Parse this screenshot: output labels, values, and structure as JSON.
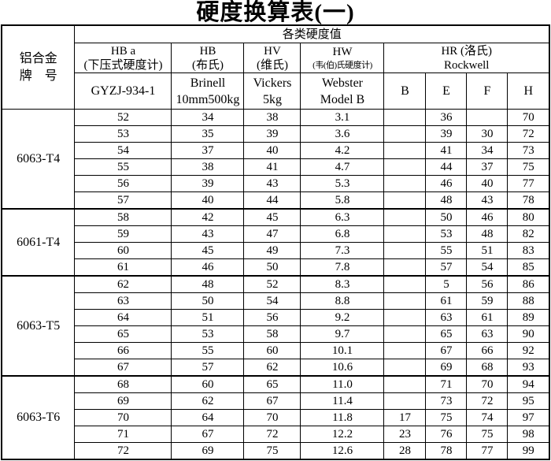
{
  "title": "硬度换算表(一)",
  "header": {
    "alloy_col": {
      "line1": "铝合金",
      "line2": "牌　号"
    },
    "span": "各类硬度值",
    "cols": [
      {
        "name": "HB a",
        "sub": "(下压式硬度计)",
        "spec": [
          "GYZJ-934-1"
        ]
      },
      {
        "name": "HB",
        "sub": "(布氏)",
        "spec": [
          "Brinell",
          "10mm500kg"
        ]
      },
      {
        "name": "HV",
        "sub": "(维氏)",
        "spec": [
          "Vickers",
          "5kg"
        ]
      },
      {
        "name": "HW",
        "sub": "(韦(伯)氏硬度计)",
        "spec": [
          "Webster",
          "Model B"
        ]
      },
      {
        "name": "HR (洛氏)",
        "sub": "Rockwell",
        "spec": [
          "B",
          "E",
          "F",
          "H"
        ]
      }
    ]
  },
  "groups": [
    {
      "alloy": "6063-T4",
      "rows": [
        [
          "52",
          "34",
          "38",
          "3.1",
          "",
          "36",
          "",
          "70"
        ],
        [
          "53",
          "35",
          "39",
          "3.6",
          "",
          "39",
          "30",
          "72"
        ],
        [
          "54",
          "37",
          "40",
          "4.2",
          "",
          "41",
          "34",
          "73"
        ],
        [
          "55",
          "38",
          "41",
          "4.7",
          "",
          "44",
          "37",
          "75"
        ],
        [
          "56",
          "39",
          "43",
          "5.3",
          "",
          "46",
          "40",
          "77"
        ],
        [
          "57",
          "40",
          "44",
          "5.8",
          "",
          "48",
          "43",
          "78"
        ]
      ]
    },
    {
      "alloy": "6061-T4",
      "rows": [
        [
          "58",
          "42",
          "45",
          "6.3",
          "",
          "50",
          "46",
          "80"
        ],
        [
          "59",
          "43",
          "47",
          "6.8",
          "",
          "53",
          "48",
          "82"
        ],
        [
          "60",
          "45",
          "49",
          "7.3",
          "",
          "55",
          "51",
          "83"
        ],
        [
          "61",
          "46",
          "50",
          "7.8",
          "",
          "57",
          "54",
          "85"
        ]
      ]
    },
    {
      "alloy": "6063-T5",
      "rows": [
        [
          "62",
          "48",
          "52",
          "8.3",
          "",
          "5",
          "56",
          "86"
        ],
        [
          "63",
          "50",
          "54",
          "8.8",
          "",
          "61",
          "59",
          "88"
        ],
        [
          "64",
          "51",
          "56",
          "9.2",
          "",
          "63",
          "61",
          "89"
        ],
        [
          "65",
          "53",
          "58",
          "9.7",
          "",
          "65",
          "63",
          "90"
        ],
        [
          "66",
          "55",
          "60",
          "10.1",
          "",
          "67",
          "66",
          "92"
        ],
        [
          "67",
          "57",
          "62",
          "10.6",
          "",
          "69",
          "68",
          "93"
        ]
      ]
    },
    {
      "alloy": "6063-T6",
      "rows": [
        [
          "68",
          "60",
          "65",
          "11.0",
          "",
          "71",
          "70",
          "94"
        ],
        [
          "69",
          "62",
          "67",
          "11.4",
          "",
          "73",
          "72",
          "95"
        ],
        [
          "70",
          "64",
          "70",
          "11.8",
          "17",
          "75",
          "74",
          "97"
        ],
        [
          "71",
          "67",
          "72",
          "12.2",
          "23",
          "76",
          "75",
          "98"
        ],
        [
          "72",
          "69",
          "75",
          "12.6",
          "28",
          "78",
          "77",
          "99"
        ]
      ]
    }
  ]
}
